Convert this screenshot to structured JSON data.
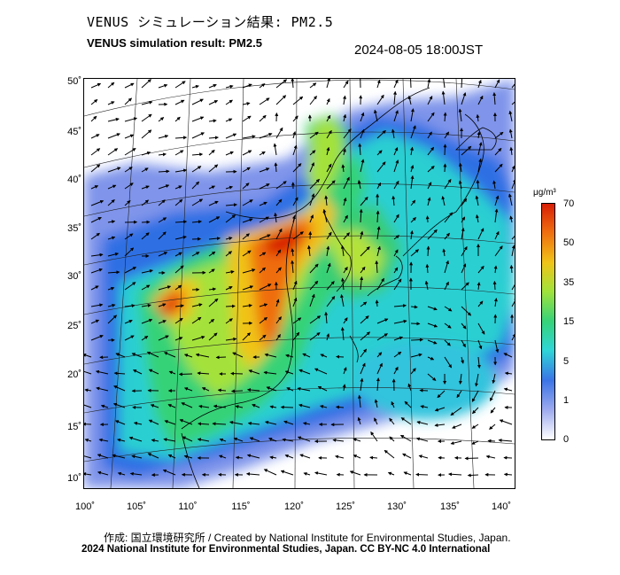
{
  "title_jp": "VENUS シミュレーション結果: PM2.5",
  "title_en": "VENUS simulation result: PM2.5",
  "timestamp": "2024-08-05 18:00JST",
  "lat_labels": [
    "50˚",
    "45˚",
    "40˚",
    "35˚",
    "30˚",
    "25˚",
    "20˚",
    "15˚",
    "10˚"
  ],
  "lon_labels": [
    "100˚",
    "105˚",
    "110˚",
    "115˚",
    "120˚",
    "125˚",
    "130˚",
    "135˚",
    "140˚"
  ],
  "colorbar": {
    "unit": "μg/m³",
    "ticks": [
      "70",
      "50",
      "35",
      "15",
      "5",
      "1",
      "0"
    ],
    "colors": [
      "#ffffff",
      "#9aa8ee",
      "#3b74e6",
      "#2fd6d6",
      "#36d27a",
      "#a2e23a",
      "#f0c418",
      "#ef6d0f",
      "#d81e06"
    ]
  },
  "credit": "作成: 国立環境研究所 / Created by National Institute for Environmental Studies, Japan.",
  "copyright": "2024 National Institute for Environmental Studies, Japan. CC BY-NC 4.0 International"
}
